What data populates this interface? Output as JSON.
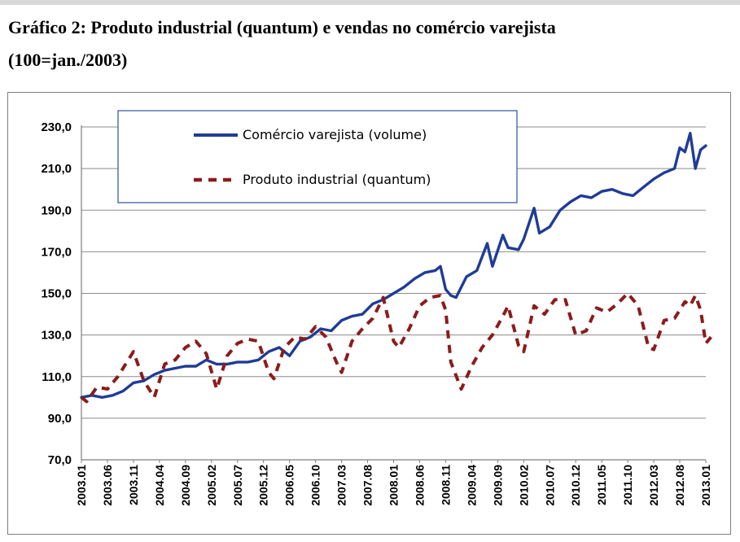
{
  "caption": {
    "line1": "Gráfico 2: Produto industrial (quantum) e vendas no comércio varejista",
    "line2": "(100=jan./2003)"
  },
  "chart_data": {
    "type": "line",
    "title": "Gráfico 2: Produto industrial (quantum) e vendas no comércio varejista (100=jan./2003)",
    "ylim": [
      70,
      230
    ],
    "yticks": [
      70,
      90,
      110,
      130,
      150,
      170,
      190,
      210,
      230
    ],
    "ytick_labels": [
      "70,0",
      "90,0",
      "110,0",
      "130,0",
      "150,0",
      "170,0",
      "190,0",
      "210,0",
      "230,0"
    ],
    "grid": true,
    "legend_position": "top-left",
    "x_tick_labels": [
      "2003.01",
      "2003.06",
      "2003.11",
      "2004.04",
      "2004.09",
      "2005.02",
      "2005.07",
      "2005.12",
      "2006.05",
      "2006.10",
      "2007.03",
      "2007.08",
      "2008.01",
      "2008.06",
      "2008.11",
      "2009.04",
      "2009.09",
      "2010.02",
      "2010.07",
      "2010.12",
      "2011.05",
      "2011.10",
      "2012.03",
      "2012.08",
      "2013.01"
    ],
    "x_start": "2003.01",
    "x_end": "2013.01",
    "series": [
      {
        "name": "Comércio varejista (volume)",
        "color": "#1f3c96",
        "style": "solid",
        "points": [
          [
            "2003.01",
            100
          ],
          [
            "2003.03",
            101
          ],
          [
            "2003.05",
            100
          ],
          [
            "2003.07",
            101
          ],
          [
            "2003.09",
            103
          ],
          [
            "2003.11",
            107
          ],
          [
            "2004.01",
            108
          ],
          [
            "2004.03",
            111
          ],
          [
            "2004.05",
            113
          ],
          [
            "2004.07",
            114
          ],
          [
            "2004.09",
            115
          ],
          [
            "2004.11",
            115
          ],
          [
            "2005.01",
            118
          ],
          [
            "2005.03",
            116
          ],
          [
            "2005.05",
            116
          ],
          [
            "2005.07",
            117
          ],
          [
            "2005.09",
            117
          ],
          [
            "2005.11",
            118
          ],
          [
            "2006.01",
            122
          ],
          [
            "2006.03",
            124
          ],
          [
            "2006.05",
            120
          ],
          [
            "2006.07",
            127
          ],
          [
            "2006.09",
            129
          ],
          [
            "2006.11",
            133
          ],
          [
            "2007.01",
            132
          ],
          [
            "2007.03",
            137
          ],
          [
            "2007.05",
            139
          ],
          [
            "2007.07",
            140
          ],
          [
            "2007.09",
            145
          ],
          [
            "2007.11",
            147
          ],
          [
            "2008.01",
            150
          ],
          [
            "2008.03",
            153
          ],
          [
            "2008.05",
            157
          ],
          [
            "2008.07",
            160
          ],
          [
            "2008.09",
            161
          ],
          [
            "2008.10",
            163
          ],
          [
            "2008.11",
            152
          ],
          [
            "2008.12",
            149
          ],
          [
            "2009.01",
            148
          ],
          [
            "2009.03",
            158
          ],
          [
            "2009.05",
            161
          ],
          [
            "2009.07",
            174
          ],
          [
            "2009.08",
            163
          ],
          [
            "2009.10",
            178
          ],
          [
            "2009.11",
            172
          ],
          [
            "2010.01",
            171
          ],
          [
            "2010.02",
            176
          ],
          [
            "2010.04",
            191
          ],
          [
            "2010.05",
            179
          ],
          [
            "2010.07",
            182
          ],
          [
            "2010.09",
            190
          ],
          [
            "2010.11",
            194
          ],
          [
            "2011.01",
            197
          ],
          [
            "2011.03",
            196
          ],
          [
            "2011.05",
            199
          ],
          [
            "2011.07",
            200
          ],
          [
            "2011.09",
            198
          ],
          [
            "2011.11",
            197
          ],
          [
            "2012.01",
            201
          ],
          [
            "2012.03",
            205
          ],
          [
            "2012.05",
            208
          ],
          [
            "2012.07",
            210
          ],
          [
            "2012.08",
            220
          ],
          [
            "2012.09",
            218
          ],
          [
            "2012.10",
            227
          ],
          [
            "2012.11",
            210
          ],
          [
            "2012.12",
            219
          ],
          [
            "2013.01",
            221
          ]
        ]
      },
      {
        "name": "Produto industrial (quantum)",
        "color": "#8b1c1c",
        "style": "dashed",
        "points": [
          [
            "2003.01",
            100
          ],
          [
            "2003.02",
            98
          ],
          [
            "2003.04",
            105
          ],
          [
            "2003.06",
            104
          ],
          [
            "2003.08",
            110
          ],
          [
            "2003.10",
            118
          ],
          [
            "2003.11",
            122
          ],
          [
            "2004.01",
            108
          ],
          [
            "2004.02",
            104
          ],
          [
            "2004.03",
            100
          ],
          [
            "2004.05",
            116
          ],
          [
            "2004.07",
            118
          ],
          [
            "2004.09",
            124
          ],
          [
            "2004.11",
            127
          ],
          [
            "2005.01",
            121
          ],
          [
            "2005.03",
            104
          ],
          [
            "2005.05",
            120
          ],
          [
            "2005.07",
            126
          ],
          [
            "2005.09",
            128
          ],
          [
            "2005.11",
            127
          ],
          [
            "2006.01",
            112
          ],
          [
            "2006.02",
            109
          ],
          [
            "2006.04",
            124
          ],
          [
            "2006.06",
            129
          ],
          [
            "2006.08",
            128
          ],
          [
            "2006.10",
            134
          ],
          [
            "2006.12",
            129
          ],
          [
            "2007.02",
            117
          ],
          [
            "2007.03",
            112
          ],
          [
            "2007.05",
            127
          ],
          [
            "2007.07",
            133
          ],
          [
            "2007.09",
            138
          ],
          [
            "2007.11",
            148
          ],
          [
            "2008.01",
            127
          ],
          [
            "2008.02",
            124
          ],
          [
            "2008.04",
            133
          ],
          [
            "2008.06",
            144
          ],
          [
            "2008.08",
            148
          ],
          [
            "2008.10",
            149
          ],
          [
            "2008.11",
            142
          ],
          [
            "2008.12",
            117
          ],
          [
            "2009.02",
            104
          ],
          [
            "2009.04",
            115
          ],
          [
            "2009.06",
            124
          ],
          [
            "2009.08",
            130
          ],
          [
            "2009.10",
            139
          ],
          [
            "2009.11",
            144
          ],
          [
            "2010.01",
            125
          ],
          [
            "2010.02",
            122
          ],
          [
            "2010.04",
            144
          ],
          [
            "2010.06",
            140
          ],
          [
            "2010.08",
            147
          ],
          [
            "2010.10",
            147
          ],
          [
            "2010.12",
            130
          ],
          [
            "2011.02",
            132
          ],
          [
            "2011.04",
            143
          ],
          [
            "2011.06",
            141
          ],
          [
            "2011.08",
            145
          ],
          [
            "2011.10",
            150
          ],
          [
            "2011.12",
            144
          ],
          [
            "2012.02",
            124
          ],
          [
            "2012.03",
            123
          ],
          [
            "2012.05",
            137
          ],
          [
            "2012.07",
            138
          ],
          [
            "2012.09",
            146
          ],
          [
            "2012.10",
            144
          ],
          [
            "2012.11",
            149
          ],
          [
            "2012.12",
            142
          ],
          [
            "2013.01",
            126
          ],
          [
            "2013.02",
            129
          ]
        ]
      }
    ]
  }
}
